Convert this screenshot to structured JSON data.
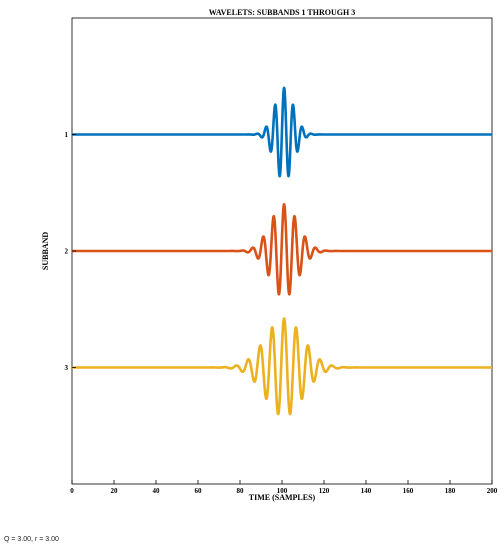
{
  "chart_data": {
    "type": "line",
    "title": "WAVELETS: SUBBANDS 1 THROUGH 3",
    "xlabel": "TIME (SAMPLES)",
    "ylabel": "SUBBAND",
    "xlim": [
      0,
      200
    ],
    "ylim": [
      4,
      0
    ],
    "x_ticks": [
      0,
      20,
      40,
      60,
      80,
      100,
      120,
      140,
      160,
      180,
      200
    ],
    "y_ticks": [
      "1",
      "2",
      "3"
    ],
    "grid": false,
    "series": [
      {
        "name": "1",
        "baseline": 1,
        "center": 101,
        "amplitude": 0.4,
        "width": 4.5,
        "period": 4.3,
        "color": "#0072bd"
      },
      {
        "name": "2",
        "baseline": 2,
        "center": 101,
        "amplitude": 0.4,
        "width": 6.5,
        "period": 5.0,
        "color": "#d95319"
      },
      {
        "name": "3",
        "baseline": 3,
        "center": 101,
        "amplitude": 0.42,
        "width": 9.0,
        "period": 5.7,
        "color": "#edb120"
      }
    ]
  },
  "caption": "Q = 3.00,  r = 3.00"
}
